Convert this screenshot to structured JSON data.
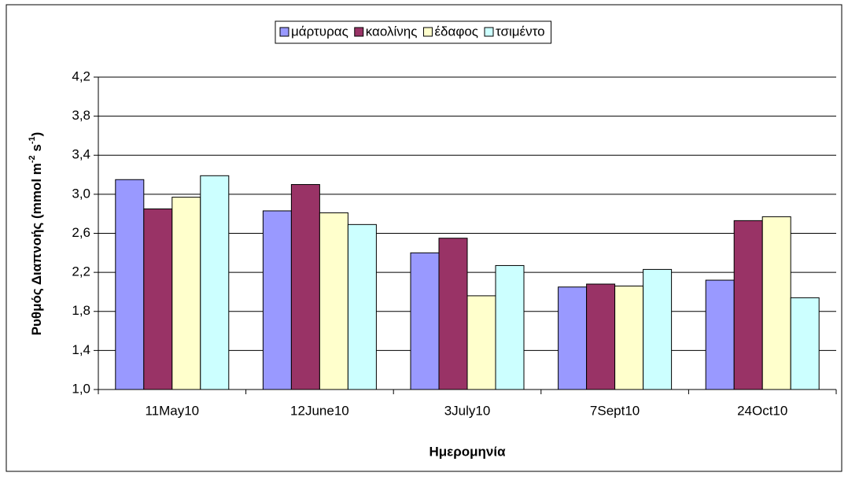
{
  "chart_data": {
    "type": "bar",
    "categories": [
      "11May10",
      "12June10",
      "3July10",
      "7Sept10",
      "24Oct10"
    ],
    "series": [
      {
        "name": "μάρτυρας",
        "color": "#9999ff",
        "values": [
          3.15,
          2.83,
          2.4,
          2.05,
          2.12
        ]
      },
      {
        "name": "καολίνης",
        "color": "#993366",
        "values": [
          2.85,
          3.1,
          2.55,
          2.08,
          2.73
        ]
      },
      {
        "name": "έδαφος",
        "color": "#ffffcc",
        "values": [
          2.97,
          2.81,
          1.96,
          2.06,
          2.77
        ]
      },
      {
        "name": "τσιμέντο",
        "color": "#ccffff",
        "values": [
          3.19,
          2.69,
          2.27,
          2.23,
          1.94
        ]
      }
    ],
    "ylim": [
      1.0,
      4.2
    ],
    "yticks": [
      {
        "value": 1.0,
        "label": "1,0"
      },
      {
        "value": 1.4,
        "label": "1,4"
      },
      {
        "value": 1.8,
        "label": "1,8"
      },
      {
        "value": 2.2,
        "label": "2,2"
      },
      {
        "value": 2.6,
        "label": "2,6"
      },
      {
        "value": 3.0,
        "label": "3,0"
      },
      {
        "value": 3.4,
        "label": "3,4"
      },
      {
        "value": 3.8,
        "label": "3,8"
      },
      {
        "value": 4.2,
        "label": "4,2"
      }
    ],
    "xlabel": "Ημερομηνία",
    "ylabel": [
      "Ρυθμός Διαπνοής (mmol m",
      "-2",
      " s",
      "-1",
      ")"
    ],
    "grid": true,
    "legend": "top"
  }
}
